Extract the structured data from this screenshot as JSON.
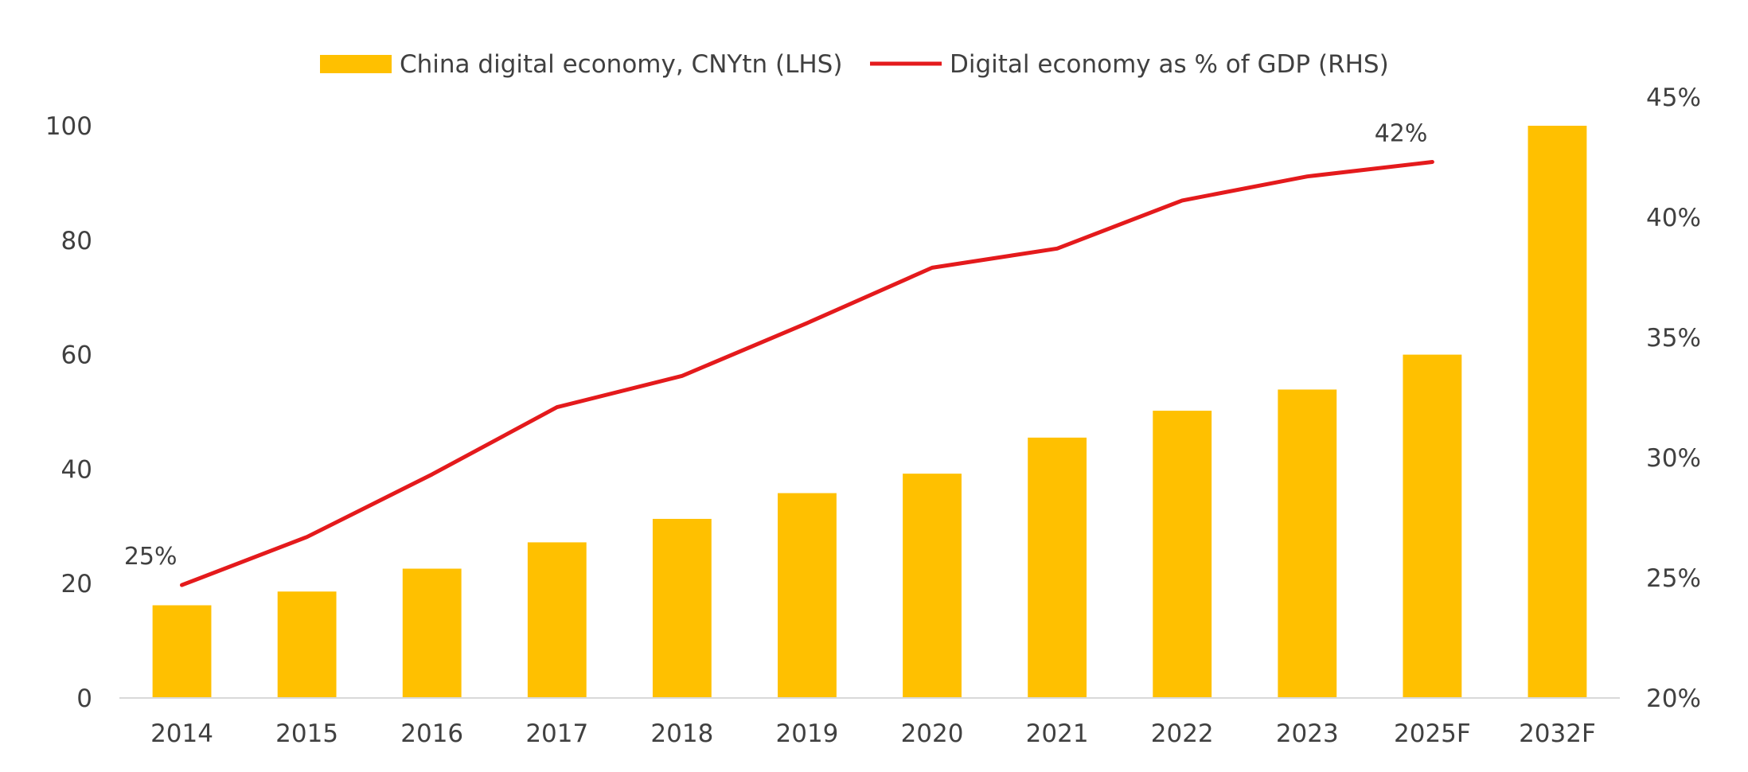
{
  "chart_data": {
    "type": "bar",
    "categories": [
      "2014",
      "2015",
      "2016",
      "2017",
      "2018",
      "2019",
      "2020",
      "2021",
      "2022",
      "2023",
      "2025F",
      "2032F"
    ],
    "series": [
      {
        "name": "China digital economy, CNYtn (LHS)",
        "type": "bar",
        "axis": "left",
        "color": "#FFC000",
        "values": [
          16.2,
          18.6,
          22.6,
          27.2,
          31.3,
          35.8,
          39.2,
          45.5,
          50.2,
          53.9,
          60.0,
          100.0
        ]
      },
      {
        "name": "Digital economy as % of GDP (RHS)",
        "type": "line",
        "axis": "right",
        "color": "#E41A1C",
        "values": [
          24.7,
          26.7,
          29.3,
          32.1,
          33.4,
          35.6,
          37.9,
          38.7,
          40.7,
          41.7,
          42.3,
          null
        ]
      }
    ],
    "y_left": {
      "min": 0,
      "max": 100,
      "ticks": [
        0,
        20,
        40,
        60,
        80,
        100
      ]
    },
    "y_right": {
      "min": 20,
      "max": 45,
      "ticks": [
        "20%",
        "25%",
        "30%",
        "35%",
        "40%",
        "45%"
      ]
    },
    "annotations": [
      {
        "text": "25%",
        "series": 1,
        "index": 0,
        "anchor": "upper-left"
      },
      {
        "text": "42%",
        "series": 1,
        "index": 10,
        "anchor": "upper-left"
      }
    ],
    "title": "",
    "xlabel": "",
    "ylabel": "",
    "grid": false,
    "legend": "top-center"
  }
}
